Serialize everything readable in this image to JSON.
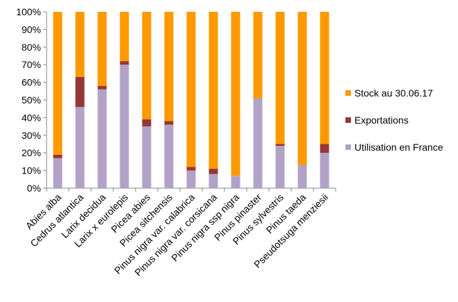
{
  "chart_data": {
    "type": "bar",
    "stacked": true,
    "percent": true,
    "categories": [
      "Abies alba",
      "Cedrus atlantica",
      "Larix decidua",
      "Larix x eurolepis",
      "Picea abies",
      "Picea sitchensis",
      "Pinus nigra var. calabrica",
      "Pinus nigra var. corsicana",
      "Pinus nigra ssp nigra",
      "Pinus pinaster",
      "Pinus sylvestris",
      "Pinus taeda",
      "Pseudotsuga menziesii"
    ],
    "series": [
      {
        "name": "Utilisation en France",
        "color": "#b3a2c7",
        "values": [
          17,
          46,
          56,
          70,
          35,
          36,
          10,
          8,
          7,
          51,
          24,
          13,
          20
        ]
      },
      {
        "name": "Exportations",
        "color": "#953735",
        "values": [
          2,
          17,
          2,
          2,
          4,
          2,
          2,
          3,
          0,
          0,
          1,
          0,
          5
        ]
      },
      {
        "name": "Stock au 30.06.17",
        "color": "#ff9900",
        "values": [
          81,
          37,
          42,
          28,
          61,
          62,
          88,
          89,
          93,
          49,
          75,
          87,
          75
        ]
      }
    ],
    "ylim": [
      0,
      100
    ],
    "yticks": [
      "0%",
      "10%",
      "20%",
      "30%",
      "40%",
      "50%",
      "60%",
      "70%",
      "80%",
      "90%",
      "100%"
    ],
    "grid": false,
    "legend_position": "right",
    "legend_order": [
      "Stock au 30.06.17",
      "Exportations",
      "Utilisation en France"
    ]
  }
}
